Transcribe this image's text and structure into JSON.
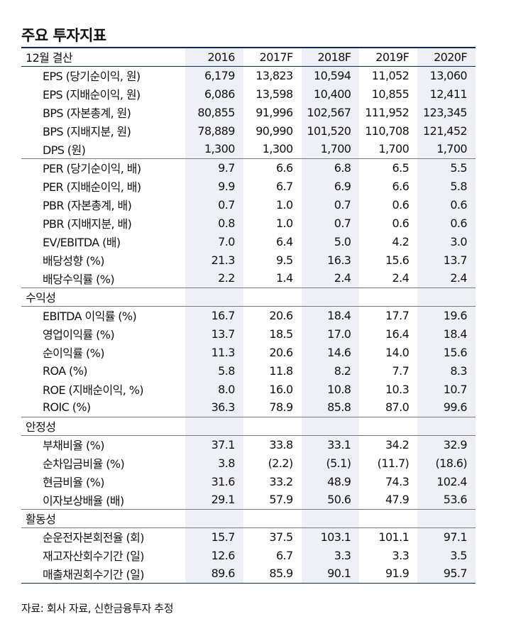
{
  "title": "주요 투자지표",
  "header": {
    "label": "12월 결산",
    "years": [
      "2016",
      "2017F",
      "2018F",
      "2019F",
      "2020F"
    ]
  },
  "groups": [
    {
      "section": null,
      "rows": [
        {
          "label": "EPS (당기순이익, 원)",
          "values": [
            "6,179",
            "13,823",
            "10,594",
            "11,052",
            "13,060"
          ]
        },
        {
          "label": "EPS (지배순이익, 원)",
          "values": [
            "6,086",
            "13,598",
            "10,400",
            "10,855",
            "12,411"
          ]
        },
        {
          "label": "BPS (자본총계, 원)",
          "values": [
            "80,855",
            "91,996",
            "102,567",
            "111,952",
            "123,345"
          ]
        },
        {
          "label": "BPS (지배지분, 원)",
          "values": [
            "78,889",
            "90,990",
            "101,520",
            "110,708",
            "121,452"
          ]
        },
        {
          "label": "DPS (원)",
          "values": [
            "1,300",
            "1,300",
            "1,700",
            "1,700",
            "1,700"
          ]
        }
      ]
    },
    {
      "section": null,
      "rows": [
        {
          "label": "PER (당기순이익, 배)",
          "values": [
            "9.7",
            "6.6",
            "6.8",
            "6.5",
            "5.5"
          ]
        },
        {
          "label": "PER (지배순이익, 배)",
          "values": [
            "9.9",
            "6.7",
            "6.9",
            "6.6",
            "5.8"
          ]
        },
        {
          "label": "PBR (자본총계, 배)",
          "values": [
            "0.7",
            "1.0",
            "0.7",
            "0.6",
            "0.6"
          ]
        },
        {
          "label": "PBR (지배지분, 배)",
          "values": [
            "0.8",
            "1.0",
            "0.7",
            "0.6",
            "0.6"
          ]
        },
        {
          "label": "EV/EBITDA (배)",
          "values": [
            "7.0",
            "6.4",
            "5.0",
            "4.2",
            "3.0"
          ]
        },
        {
          "label": "배당성향 (%)",
          "values": [
            "21.3",
            "9.5",
            "16.3",
            "15.6",
            "13.7"
          ]
        },
        {
          "label": "배당수익률 (%)",
          "values": [
            "2.2",
            "1.4",
            "2.4",
            "2.4",
            "2.4"
          ]
        }
      ]
    },
    {
      "section": "수익성",
      "rows": [
        {
          "label": "EBITDA 이익률 (%)",
          "values": [
            "16.7",
            "20.6",
            "18.4",
            "17.7",
            "19.6"
          ]
        },
        {
          "label": "영업이익률 (%)",
          "values": [
            "13.7",
            "18.5",
            "17.0",
            "16.4",
            "18.4"
          ]
        },
        {
          "label": "순이익률 (%)",
          "values": [
            "11.3",
            "20.6",
            "14.6",
            "14.0",
            "15.6"
          ]
        },
        {
          "label": "ROA (%)",
          "values": [
            "5.8",
            "11.8",
            "8.2",
            "7.7",
            "8.3"
          ]
        },
        {
          "label": "ROE (지배순이익, %)",
          "values": [
            "8.0",
            "16.0",
            "10.8",
            "10.3",
            "10.7"
          ]
        },
        {
          "label": "ROIC (%)",
          "values": [
            "36.3",
            "78.9",
            "85.8",
            "87.0",
            "99.6"
          ]
        }
      ]
    },
    {
      "section": "안정성",
      "rows": [
        {
          "label": "부채비율 (%)",
          "values": [
            "37.1",
            "33.8",
            "33.1",
            "34.2",
            "32.9"
          ]
        },
        {
          "label": "순차입금비율 (%)",
          "values": [
            "3.8",
            "(2.2)",
            "(5.1)",
            "(11.7)",
            "(18.6)"
          ]
        },
        {
          "label": "현금비율 (%)",
          "values": [
            "31.6",
            "33.2",
            "48.9",
            "74.3",
            "102.4"
          ]
        },
        {
          "label": "이자보상배율 (배)",
          "values": [
            "29.1",
            "57.9",
            "50.6",
            "47.9",
            "53.6"
          ]
        }
      ]
    },
    {
      "section": "활동성",
      "rows": [
        {
          "label": "순운전자본회전율 (회)",
          "values": [
            "15.7",
            "37.5",
            "103.1",
            "101.1",
            "97.1"
          ]
        },
        {
          "label": "재고자산회수기간 (일)",
          "values": [
            "12.6",
            "6.7",
            "3.3",
            "3.3",
            "3.5"
          ]
        },
        {
          "label": "매출채권회수기간 (일)",
          "values": [
            "89.6",
            "85.9",
            "90.1",
            "91.9",
            "95.7"
          ]
        }
      ]
    }
  ],
  "source": "자료: 회사 자료, 신한금융투자 추정",
  "colors": {
    "header_rule": "#0b2a5b",
    "shade": "#eef0f6",
    "rule": "#7a7a7a"
  }
}
